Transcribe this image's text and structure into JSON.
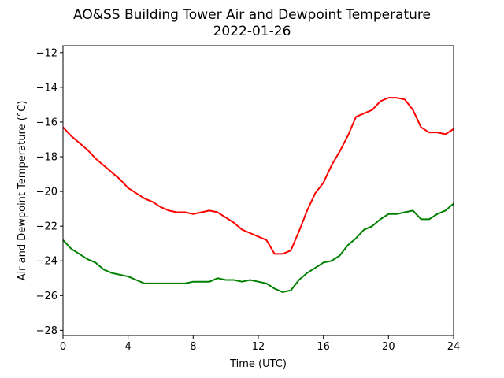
{
  "chart_data": {
    "type": "line",
    "title": "AO&SS Building Tower Air and Dewpoint Temperature",
    "subtitle": "2022-01-26",
    "xlabel": "Time (UTC)",
    "ylabel": "Air and Dewpoint Temperature (°C)",
    "xlim": [
      0,
      24
    ],
    "ylim": [
      -28.3,
      -11.6
    ],
    "xticks": [
      0,
      4,
      8,
      12,
      16,
      20,
      24
    ],
    "yticks": [
      -28,
      -26,
      -24,
      -22,
      -20,
      -18,
      -16,
      -14,
      -12
    ],
    "grid": false,
    "legend": "none",
    "series": [
      {
        "color": "#ff0000",
        "x": [
          0,
          0.5,
          1,
          1.5,
          2,
          2.5,
          3,
          3.5,
          4,
          4.5,
          5,
          5.5,
          6,
          6.5,
          7,
          7.5,
          8,
          8.5,
          9,
          9.5,
          10,
          10.5,
          11,
          11.5,
          12,
          12.5,
          13,
          13.5,
          14,
          14.5,
          15,
          15.5,
          16,
          16.5,
          17,
          17.5,
          18,
          18.5,
          19,
          19.5,
          20,
          20.5,
          21,
          21.5,
          22,
          22.5,
          23,
          23.5,
          24
        ],
        "values": [
          -16.3,
          -16.8,
          -17.2,
          -17.6,
          -18.1,
          -18.5,
          -18.9,
          -19.3,
          -19.8,
          -20.1,
          -20.4,
          -20.6,
          -20.9,
          -21.1,
          -21.2,
          -21.2,
          -21.3,
          -21.2,
          -21.1,
          -21.2,
          -21.5,
          -21.8,
          -22.2,
          -22.4,
          -22.6,
          -22.8,
          -23.6,
          -23.6,
          -23.4,
          -22.3,
          -21.1,
          -20.1,
          -19.5,
          -18.5,
          -17.7,
          -16.8,
          -15.7,
          -15.5,
          -15.3,
          -14.8,
          -14.6,
          -14.6,
          -14.7,
          -15.3,
          -16.3,
          -16.6,
          -16.6,
          -16.7,
          -16.4
        ]
      },
      {
        "color": "#008000",
        "x": [
          0,
          0.5,
          1,
          1.5,
          2,
          2.5,
          3,
          3.5,
          4,
          4.5,
          5,
          5.5,
          6,
          6.5,
          7,
          7.5,
          8,
          8.5,
          9,
          9.5,
          10,
          10.5,
          11,
          11.5,
          12,
          12.5,
          13,
          13.5,
          14,
          14.5,
          15,
          15.5,
          16,
          16.5,
          17,
          17.5,
          18,
          18.5,
          19,
          19.5,
          20,
          20.5,
          21,
          21.5,
          22,
          22.5,
          23,
          23.5,
          24
        ],
        "values": [
          -22.8,
          -23.3,
          -23.6,
          -23.9,
          -24.1,
          -24.5,
          -24.7,
          -24.8,
          -24.9,
          -25.1,
          -25.3,
          -25.3,
          -25.3,
          -25.3,
          -25.3,
          -25.3,
          -25.2,
          -25.2,
          -25.2,
          -25.0,
          -25.1,
          -25.1,
          -25.2,
          -25.1,
          -25.2,
          -25.3,
          -25.6,
          -25.8,
          -25.7,
          -25.1,
          -24.7,
          -24.4,
          -24.1,
          -24.0,
          -23.7,
          -23.1,
          -22.7,
          -22.2,
          -22.0,
          -21.6,
          -21.3,
          -21.3,
          -21.2,
          -21.1,
          -21.6,
          -21.6,
          -21.3,
          -21.1,
          -20.7
        ]
      }
    ]
  }
}
